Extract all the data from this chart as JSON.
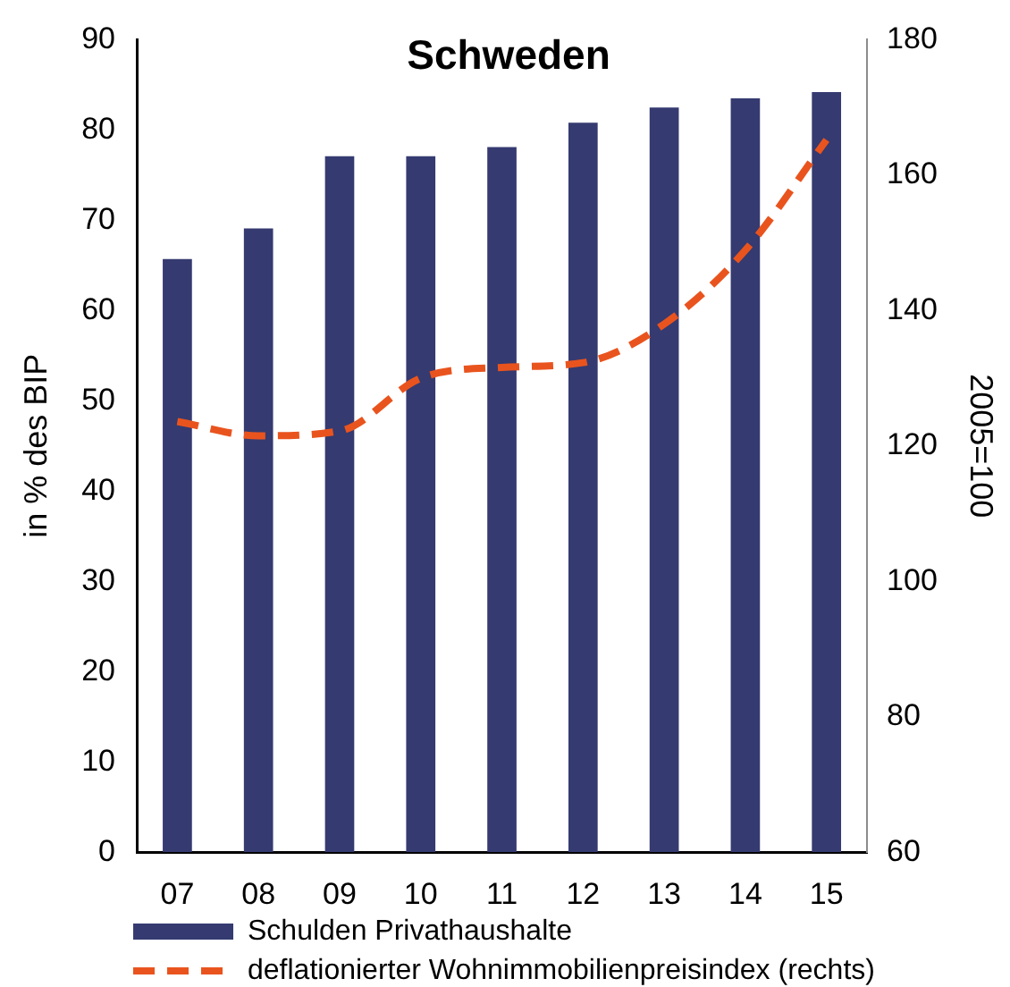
{
  "chart_data": {
    "type": "bar",
    "title": "Schweden",
    "categories": [
      "07",
      "08",
      "09",
      "10",
      "11",
      "12",
      "13",
      "14",
      "15"
    ],
    "ylabel": "in % des BIP",
    "y2label": "2005=100",
    "ylim": [
      0,
      90
    ],
    "yticks": [
      0,
      10,
      20,
      30,
      40,
      50,
      60,
      70,
      80,
      90
    ],
    "y2lim": [
      60,
      180
    ],
    "y2ticks": [
      60,
      80,
      100,
      120,
      140,
      160,
      180
    ],
    "series": [
      {
        "name": "Schulden Privathaushalte",
        "type": "bar",
        "color": "#353a70",
        "values": [
          65.7,
          69.1,
          77.1,
          77.1,
          78.1,
          80.8,
          82.5,
          83.5,
          84.2
        ]
      },
      {
        "name": "deflationierter Wohnimmobilienpreisindex (rechts)",
        "type": "line",
        "axis": "y2",
        "color": "#e9541e",
        "line_style": "dashed",
        "values": [
          123.6,
          121.5,
          122.2,
          130.0,
          131.6,
          132.3,
          138.0,
          148.9,
          165.2
        ]
      }
    ],
    "legend": "bottom left",
    "grid": false
  }
}
